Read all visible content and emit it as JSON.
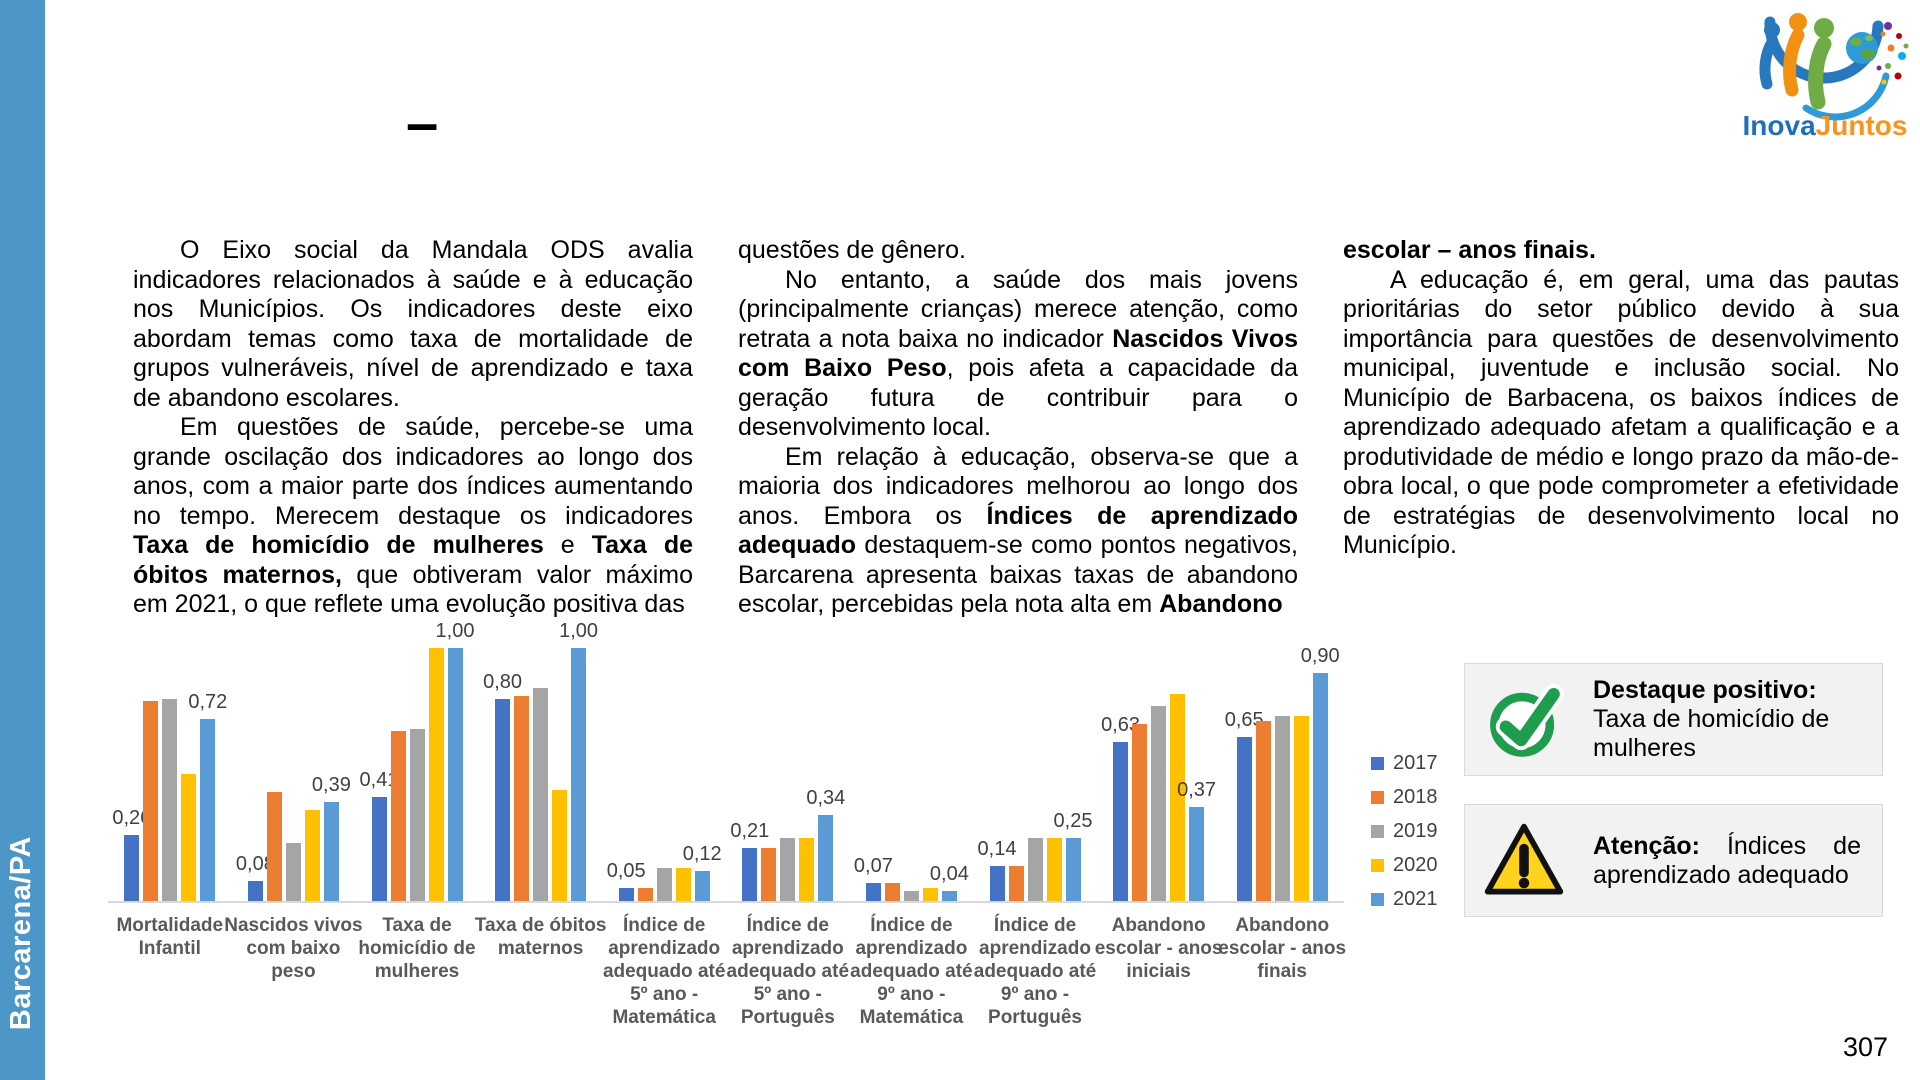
{
  "page": {
    "number": "307"
  },
  "sidebar": {
    "label": "Barcarena/PA"
  },
  "logo": {
    "inova": "Inova",
    "juntos": "Juntos"
  },
  "header": {
    "dash": "–"
  },
  "main": {
    "columns": [
      {
        "paragraphs": [
          {
            "indent": true,
            "runs": [
              {
                "t": "O Eixo social da Mandala ODS avalia indicadores relacionados à saúde e à educação nos Municípios. Os indicadores deste eixo abordam temas como taxa de mortalidade de grupos vulneráveis, nível de aprendizado e taxa de abandono escolares."
              }
            ]
          },
          {
            "indent": true,
            "runs": [
              {
                "t": "Em questões de saúde, percebe-se uma grande oscilação dos indicadores ao longo dos anos, com a maior parte dos índices aumentando no tempo. Merecem destaque os indicadores "
              },
              {
                "t": "Taxa de homicídio de mulheres",
                "b": true
              },
              {
                "t": " e "
              },
              {
                "t": "Taxa de óbitos maternos,",
                "b": true
              },
              {
                "t": " que obtiveram valor máximo em 2021, o que reflete uma evolução positiva das"
              }
            ]
          }
        ]
      },
      {
        "paragraphs": [
          {
            "indent": false,
            "runs": [
              {
                "t": "questões de gênero."
              }
            ]
          },
          {
            "indent": true,
            "runs": [
              {
                "t": "No entanto, a saúde dos mais jovens (principalmente crianças) merece atenção, como retrata a nota baixa no indicador "
              },
              {
                "t": "Nascidos Vivos com Baixo Peso",
                "b": true
              },
              {
                "t": ", pois afeta a capacidade da geração futura de contribuir para o desenvolvimento local."
              }
            ]
          },
          {
            "indent": true,
            "runs": [
              {
                "t": "Em relação à educação, observa-se que a maioria dos indicadores melhorou ao longo dos anos. Embora os "
              },
              {
                "t": "Índices de aprendizado adequado",
                "b": true
              },
              {
                "t": " destaquem-se como pontos negativos, Barcarena apresenta baixas taxas de abandono escolar, percebidas pela nota alta em "
              },
              {
                "t": "Abandono",
                "b": true
              }
            ]
          }
        ]
      },
      {
        "paragraphs": [
          {
            "indent": false,
            "runs": [
              {
                "t": "escolar – anos finais.",
                "b": true
              }
            ]
          },
          {
            "indent": true,
            "runs": [
              {
                "t": "A educação é, em geral, uma das pautas prioritárias do setor público devido à sua importância para questões de desenvolvimento municipal, juventude e inclusão social. No Município de Barbacena, os baixos índices de aprendizado adequado afetam a qualificação e a produtividade de médio e longo prazo da mão-de-obra local, o que pode comprometer a efetividade de estratégias de desenvolvimento local no Município."
              }
            ]
          }
        ]
      }
    ]
  },
  "chart_data": {
    "type": "bar",
    "title": "",
    "xlabel": "",
    "ylabel": "",
    "ylim": [
      0,
      1.05
    ],
    "grid": false,
    "legend_position": "right",
    "categories": [
      "Mortalidade Infantil",
      "Nascidos vivos com baixo peso",
      "Taxa de homicídio de mulheres",
      "Taxa de óbitos maternos",
      "Índice de aprendizado adequado até 5º ano - Matemática",
      "Índice de aprendizado adequado até 5º ano - Português",
      "Índice de aprendizado adequado até 9º ano - Matemática",
      "Índice de aprendizado adequado até 9º ano - Português",
      "Abandono escolar - anos iniciais",
      "Abandono escolar - anos finais"
    ],
    "series": [
      {
        "name": "2017",
        "color": "#4472C4",
        "values": [
          0.26,
          0.08,
          0.41,
          0.8,
          0.05,
          0.21,
          0.07,
          0.14,
          0.63,
          0.65
        ]
      },
      {
        "name": "2018",
        "color": "#ED7D31",
        "values": [
          0.79,
          0.43,
          0.67,
          0.81,
          0.05,
          0.21,
          0.07,
          0.14,
          0.7,
          0.71
        ]
      },
      {
        "name": "2019",
        "color": "#A5A5A5",
        "values": [
          0.8,
          0.23,
          0.68,
          0.84,
          0.13,
          0.25,
          0.04,
          0.25,
          0.77,
          0.73
        ]
      },
      {
        "name": "2020",
        "color": "#FFC000",
        "values": [
          0.5,
          0.36,
          1.0,
          0.44,
          0.13,
          0.25,
          0.05,
          0.25,
          0.82,
          0.73
        ]
      },
      {
        "name": "2021",
        "color": "#5B9BD5",
        "values": [
          0.72,
          0.39,
          1.0,
          1.0,
          0.12,
          0.34,
          0.04,
          0.25,
          0.37,
          0.9
        ]
      }
    ],
    "first_last_labels": [
      [
        "0,26",
        "0,72"
      ],
      [
        "0,08",
        "0,39"
      ],
      [
        "0,41",
        "1,00"
      ],
      [
        "0,80",
        "1,00"
      ],
      [
        "0,05",
        "0,12"
      ],
      [
        "0,21",
        "0,34"
      ],
      [
        "0,07",
        "0,04"
      ],
      [
        "0,14",
        "0,25"
      ],
      [
        "0,63",
        "0,37"
      ],
      [
        "0,65",
        "0,90"
      ]
    ]
  },
  "callouts": [
    {
      "title": "Destaque positivo:",
      "body": "Taxa de homicídio de mulheres",
      "icon": "check-circle-icon"
    },
    {
      "title": "Atenção:",
      "body": " Índices de aprendizado adequado",
      "icon": "warning-triangle-icon"
    }
  ],
  "colors": {
    "sidebar": "#4C96C8",
    "axis": "#D9D9D9",
    "value_label": "#404040",
    "category_label": "#595959",
    "callout_bg": "#F2F2F2",
    "check_green": "#1E9E4C",
    "warning_yellow": "#FFD21E"
  }
}
